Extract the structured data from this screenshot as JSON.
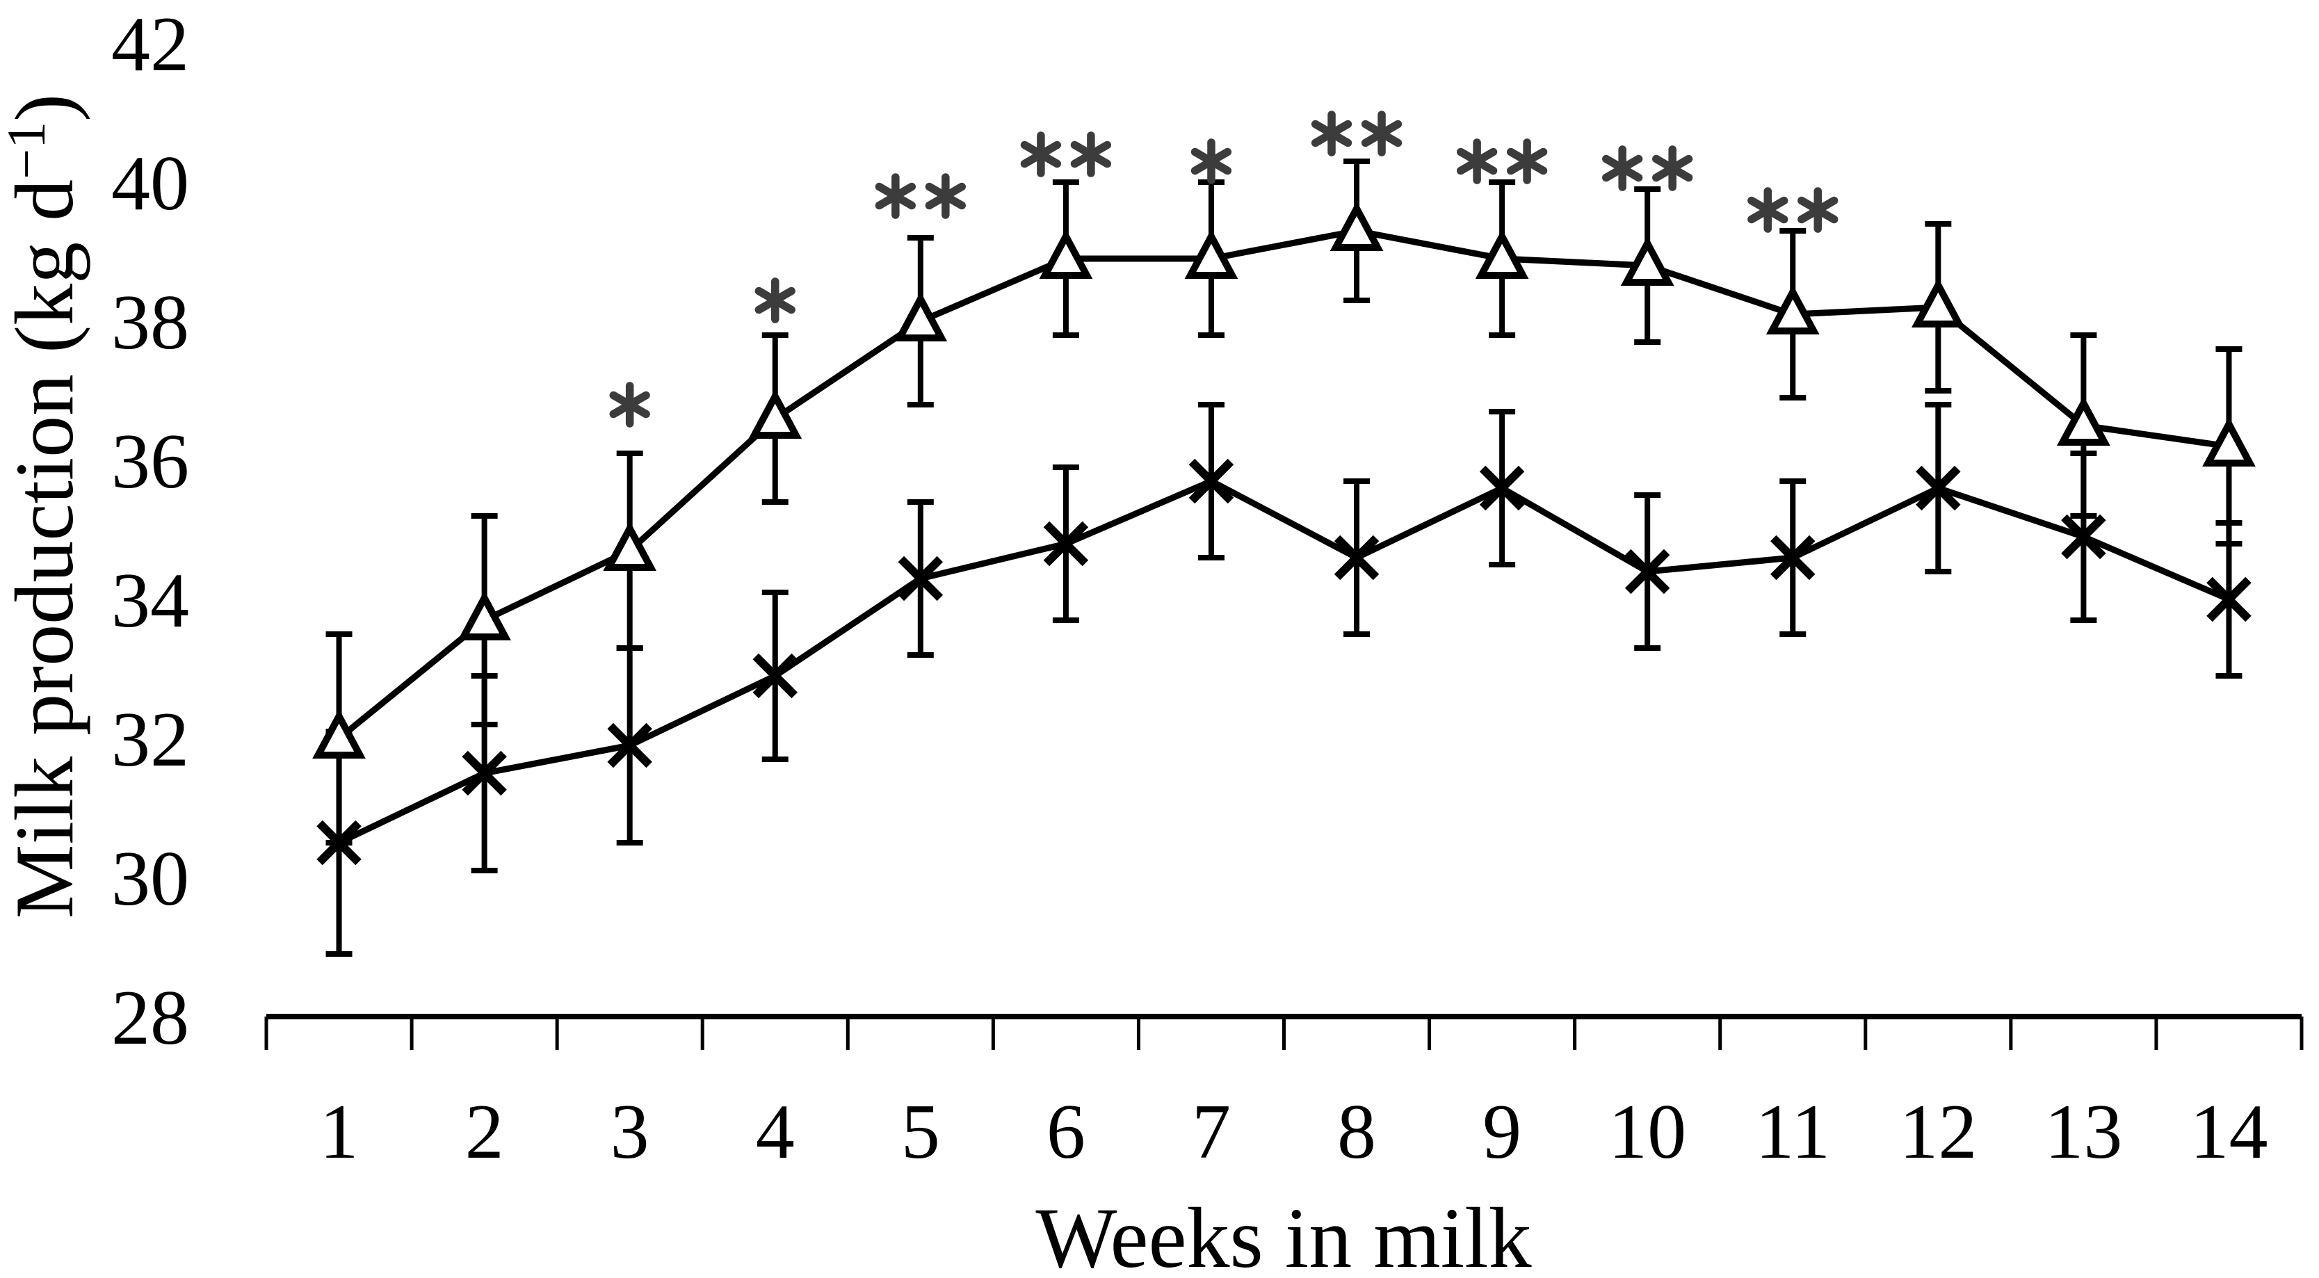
{
  "y_axis": {
    "title_main": "Milk production (kg d",
    "title_sup": "−1",
    "title_close": ")",
    "ticks": [
      42,
      40,
      38,
      36,
      34,
      32,
      30,
      28
    ]
  },
  "x_axis": {
    "title": "Weeks in milk",
    "ticks": [
      1,
      2,
      3,
      4,
      5,
      6,
      7,
      8,
      9,
      10,
      11,
      12,
      13,
      14
    ]
  },
  "chart_data": {
    "type": "line",
    "title": "",
    "xlabel": "Weeks in milk",
    "ylabel": "Milk production (kg d−1)",
    "x": [
      1,
      2,
      3,
      4,
      5,
      6,
      7,
      8,
      9,
      10,
      11,
      12,
      13,
      14
    ],
    "ylim": [
      28,
      42
    ],
    "ytick_step": 2,
    "grid": false,
    "legend": "none",
    "series": [
      {
        "name": "triangle-marker-series",
        "marker": "open-triangle",
        "values": [
          32.0,
          33.7,
          34.7,
          36.6,
          38.0,
          38.9,
          38.9,
          39.3,
          38.9,
          38.8,
          38.1,
          38.2,
          36.5,
          36.2
        ],
        "err": [
          1.5,
          1.5,
          1.4,
          1.2,
          1.2,
          1.1,
          1.1,
          1.0,
          1.1,
          1.1,
          1.2,
          1.2,
          1.3,
          1.4
        ]
      },
      {
        "name": "cross-marker-series",
        "marker": "cross",
        "values": [
          30.5,
          31.5,
          31.9,
          32.9,
          34.3,
          34.8,
          35.7,
          34.6,
          35.6,
          34.4,
          34.6,
          35.6,
          34.9,
          34.0
        ],
        "err": [
          1.6,
          1.4,
          1.4,
          1.2,
          1.1,
          1.1,
          1.1,
          1.1,
          1.1,
          1.1,
          1.1,
          1.2,
          1.2,
          1.1
        ]
      }
    ],
    "significance": [
      {
        "week": 3,
        "label": "*",
        "y": 36.8
      },
      {
        "week": 4,
        "label": "*",
        "y": 38.3
      },
      {
        "week": 5,
        "label": "**",
        "y": 39.8
      },
      {
        "week": 6,
        "label": "**",
        "y": 40.4
      },
      {
        "week": 7,
        "label": "*",
        "y": 40.3
      },
      {
        "week": 8,
        "label": "**",
        "y": 40.7
      },
      {
        "week": 9,
        "label": "**",
        "y": 40.3
      },
      {
        "week": 10,
        "label": "**",
        "y": 40.2
      },
      {
        "week": 11,
        "label": "**",
        "y": 39.6
      }
    ],
    "colors": {
      "series": "#000000",
      "significance": "#3c3c3c",
      "background": "#ffffff"
    }
  }
}
